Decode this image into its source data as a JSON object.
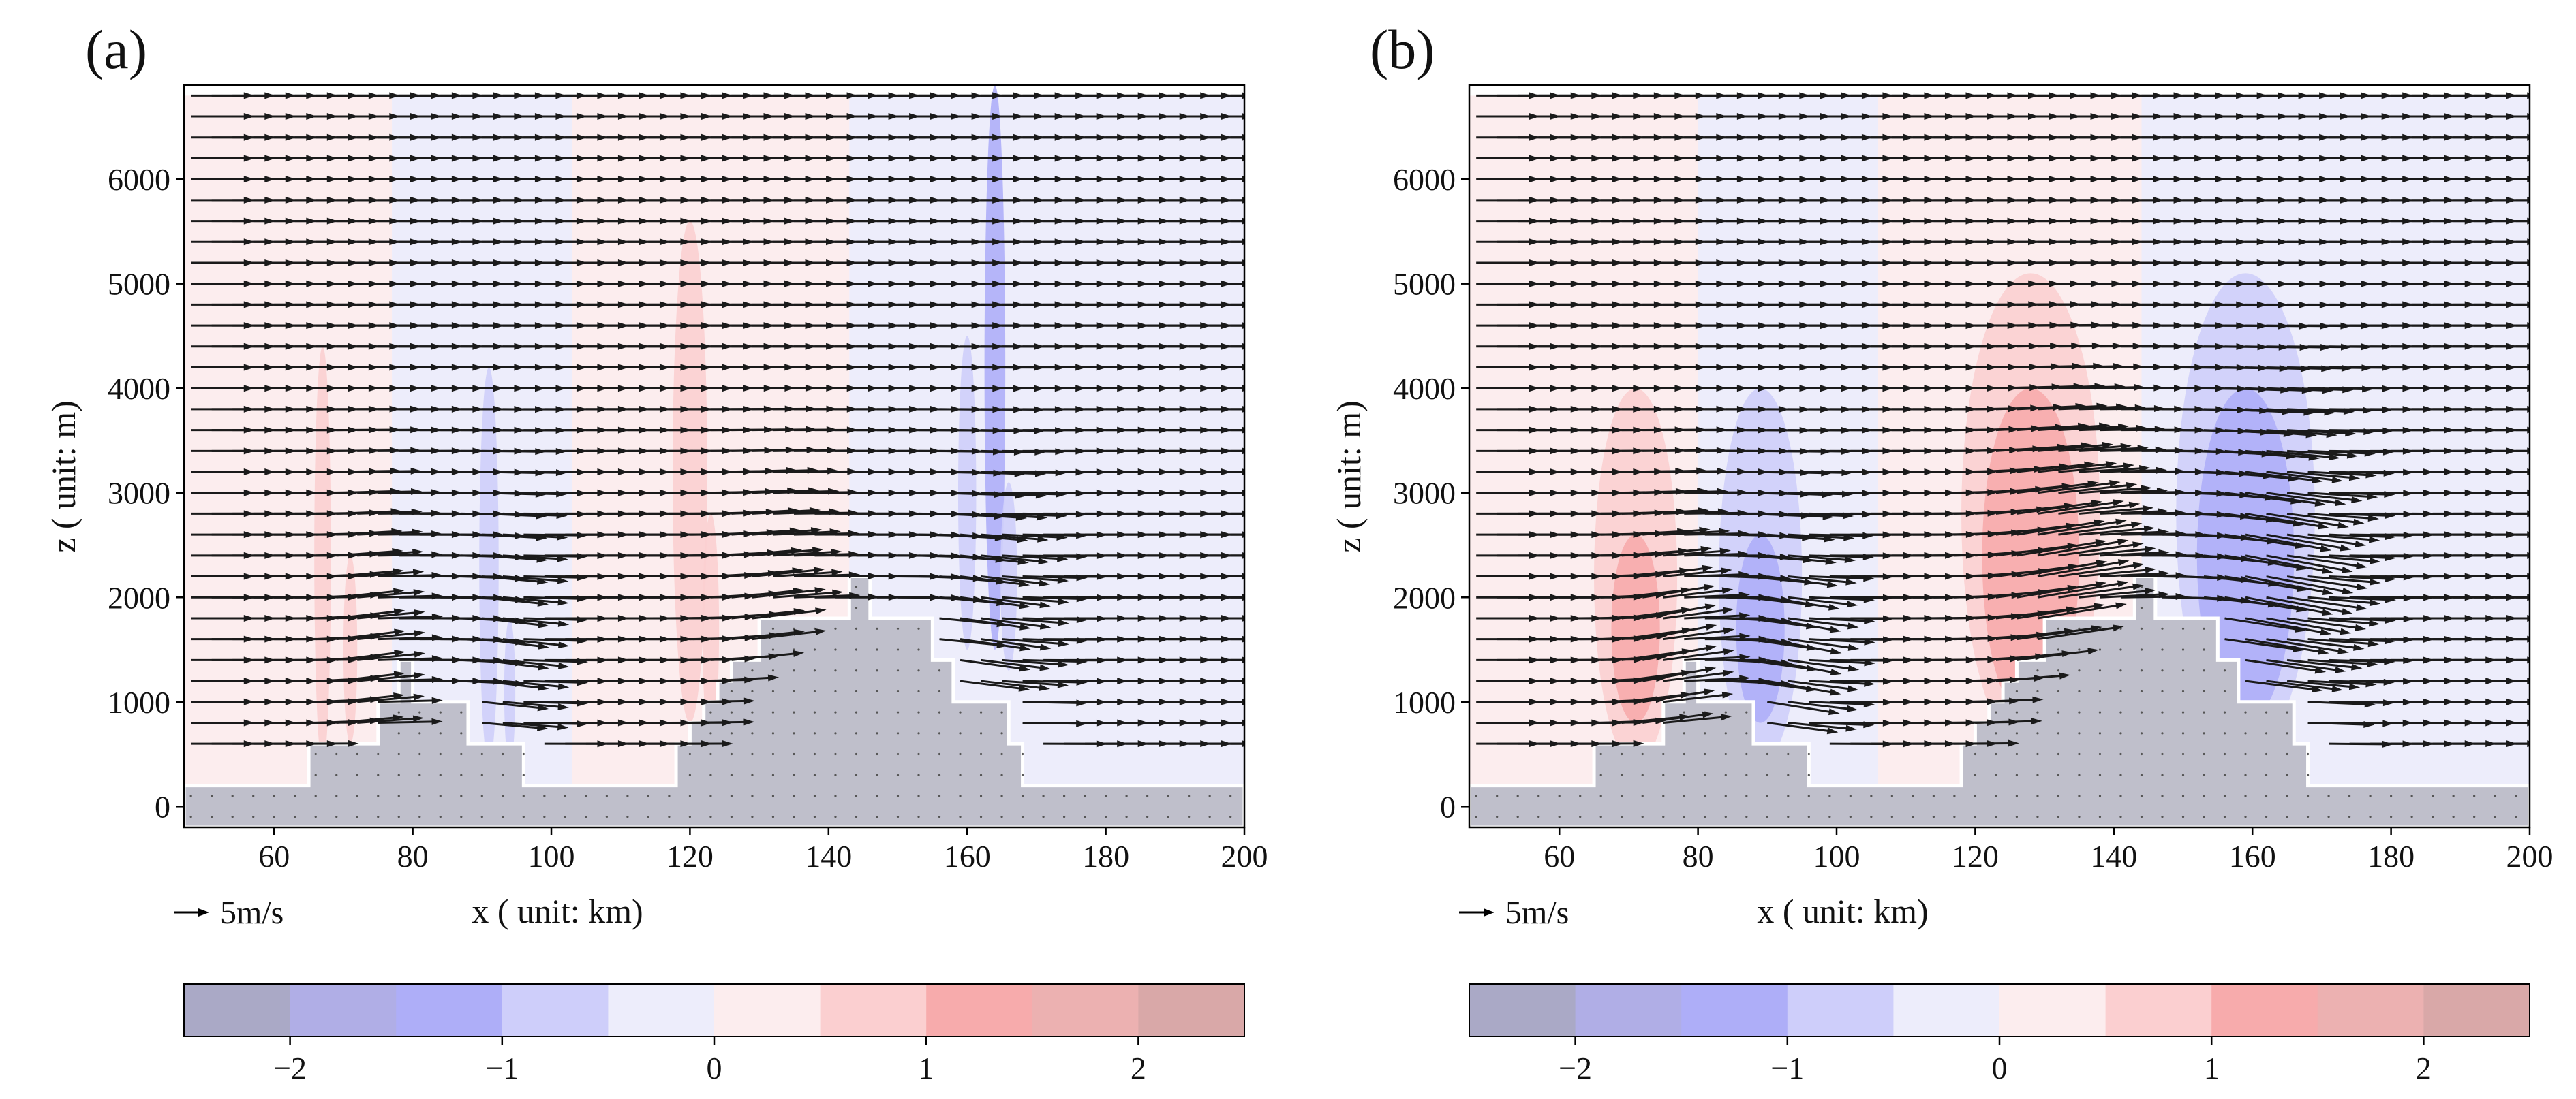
{
  "chart_data": [
    {
      "type": "contour+quiver",
      "panel_label": "(a)",
      "xlabel": "x ( unit: km)",
      "ylabel": "z ( unit: m)",
      "xlim": [
        47,
        200
      ],
      "ylim": [
        -200,
        6900
      ],
      "xticks": [
        60,
        80,
        100,
        120,
        140,
        160,
        180,
        200
      ],
      "yticks": [
        0,
        1000,
        2000,
        3000,
        4000,
        5000,
        6000
      ],
      "quiver_key": "5m/s",
      "terrain_km_m": [
        [
          47,
          200
        ],
        [
          65,
          200
        ],
        [
          65,
          600
        ],
        [
          75,
          600
        ],
        [
          75,
          1000
        ],
        [
          78,
          1000
        ],
        [
          78,
          1400
        ],
        [
          80,
          1400
        ],
        [
          80,
          1000
        ],
        [
          88,
          1000
        ],
        [
          88,
          600
        ],
        [
          96,
          600
        ],
        [
          96,
          200
        ],
        [
          118,
          200
        ],
        [
          118,
          600
        ],
        [
          120,
          600
        ],
        [
          120,
          800
        ],
        [
          122,
          800
        ],
        [
          122,
          1000
        ],
        [
          124,
          1000
        ],
        [
          124,
          1200
        ],
        [
          126,
          1200
        ],
        [
          126,
          1400
        ],
        [
          130,
          1400
        ],
        [
          130,
          1800
        ],
        [
          143,
          1800
        ],
        [
          143,
          2200
        ],
        [
          146,
          2200
        ],
        [
          146,
          1800
        ],
        [
          155,
          1800
        ],
        [
          155,
          1400
        ],
        [
          158,
          1400
        ],
        [
          158,
          1000
        ],
        [
          166,
          1000
        ],
        [
          166,
          600
        ],
        [
          168,
          600
        ],
        [
          168,
          200
        ],
        [
          200,
          200
        ]
      ],
      "contours": {
        "colorbar_ticks": [
          -2,
          -1,
          0,
          1,
          2
        ],
        "colorbar_levels": [
          -2.5,
          -2,
          -1.5,
          -1,
          -0.5,
          0,
          0.5,
          1,
          1.5,
          2,
          2.5
        ],
        "background_bands": [
          {
            "x0": 47,
            "x1": 77,
            "value": 0.25
          },
          {
            "x0": 77,
            "x1": 103,
            "value": -0.25
          },
          {
            "x0": 103,
            "x1": 143,
            "value": 0.25
          },
          {
            "x0": 143,
            "x1": 200,
            "value": -0.25
          }
        ],
        "blobs": [
          {
            "cx": 67,
            "cz": 2400,
            "rx": 1.2,
            "rz": 2000,
            "value": 0.8
          },
          {
            "cx": 71,
            "cz": 1500,
            "rx": 1.0,
            "rz": 900,
            "value": 0.8
          },
          {
            "cx": 91,
            "cz": 2300,
            "rx": 1.4,
            "rz": 1900,
            "value": -0.8
          },
          {
            "cx": 94,
            "cz": 1100,
            "rx": 0.8,
            "rz": 700,
            "value": -0.8
          },
          {
            "cx": 120,
            "cz": 3200,
            "rx": 2.5,
            "rz": 2400,
            "value": 0.8
          },
          {
            "cx": 123,
            "cz": 1700,
            "rx": 1.2,
            "rz": 1100,
            "value": 0.8
          },
          {
            "cx": 164,
            "cz": 4200,
            "rx": 1.5,
            "rz": 2700,
            "value": -1.2
          },
          {
            "cx": 160,
            "cz": 3000,
            "rx": 1.3,
            "rz": 1500,
            "value": -0.8
          },
          {
            "cx": 166,
            "cz": 2200,
            "rx": 1.2,
            "rz": 900,
            "value": -0.8
          }
        ]
      },
      "wind_field": {
        "x_step_km": 3,
        "z_levels_m": [
          600,
          800,
          1000,
          1200,
          1400,
          1600,
          1800,
          2000,
          2200,
          2400,
          2600,
          2800,
          3000,
          3200,
          3400,
          3600,
          3800,
          4000,
          4200,
          4400,
          4600,
          4800,
          5000,
          5200,
          5400,
          5600,
          5800,
          6000,
          6200,
          6400,
          6600,
          6800
        ],
        "u_background_ms": 3.6,
        "perturbations": [
          {
            "cx": 70,
            "cz": 1500,
            "rx": 4,
            "rz": 1200,
            "du": 0.3,
            "dw": 0.5
          },
          {
            "cx": 91,
            "cz": 1500,
            "rx": 4,
            "rz": 1200,
            "du": 0.2,
            "dw": -0.5
          },
          {
            "cx": 128,
            "cz": 1700,
            "rx": 6,
            "rz": 1200,
            "du": 0.6,
            "dw": 0.5
          },
          {
            "cx": 160,
            "cz": 1700,
            "rx": 6,
            "rz": 1200,
            "du": 0.4,
            "dw": -0.6
          }
        ]
      }
    },
    {
      "type": "contour+quiver",
      "panel_label": "(b)",
      "xlabel": "x ( unit: km)",
      "ylabel": "z ( unit: m)",
      "xlim": [
        47,
        200
      ],
      "ylim": [
        -200,
        6900
      ],
      "xticks": [
        60,
        80,
        100,
        120,
        140,
        160,
        180,
        200
      ],
      "yticks": [
        0,
        1000,
        2000,
        3000,
        4000,
        5000,
        6000
      ],
      "quiver_key": "5m/s",
      "terrain_km_m": [
        [
          47,
          200
        ],
        [
          65,
          200
        ],
        [
          65,
          600
        ],
        [
          75,
          600
        ],
        [
          75,
          1000
        ],
        [
          78,
          1000
        ],
        [
          78,
          1400
        ],
        [
          80,
          1400
        ],
        [
          80,
          1000
        ],
        [
          88,
          1000
        ],
        [
          88,
          600
        ],
        [
          96,
          600
        ],
        [
          96,
          200
        ],
        [
          118,
          200
        ],
        [
          118,
          600
        ],
        [
          120,
          600
        ],
        [
          120,
          800
        ],
        [
          122,
          800
        ],
        [
          122,
          1000
        ],
        [
          124,
          1000
        ],
        [
          124,
          1200
        ],
        [
          126,
          1200
        ],
        [
          126,
          1400
        ],
        [
          130,
          1400
        ],
        [
          130,
          1800
        ],
        [
          143,
          1800
        ],
        [
          143,
          2200
        ],
        [
          146,
          2200
        ],
        [
          146,
          1800
        ],
        [
          155,
          1800
        ],
        [
          155,
          1400
        ],
        [
          158,
          1400
        ],
        [
          158,
          1000
        ],
        [
          166,
          1000
        ],
        [
          166,
          600
        ],
        [
          168,
          600
        ],
        [
          168,
          200
        ],
        [
          200,
          200
        ]
      ],
      "contours": {
        "colorbar_ticks": [
          -2,
          -1,
          0,
          1,
          2
        ],
        "colorbar_levels": [
          -2.5,
          -2,
          -1.5,
          -1,
          -0.5,
          0,
          0.5,
          1,
          1.5,
          2,
          2.5
        ],
        "background_bands": [
          {
            "x0": 47,
            "x1": 80,
            "value": 0.25
          },
          {
            "x0": 80,
            "x1": 106,
            "value": -0.25
          },
          {
            "x0": 106,
            "x1": 144,
            "value": 0.25
          },
          {
            "x0": 144,
            "x1": 200,
            "value": -0.25
          }
        ],
        "blobs": [
          {
            "cx": 71,
            "cz": 2200,
            "rx": 6,
            "rz": 1800,
            "value": 0.75
          },
          {
            "cx": 71,
            "cz": 1700,
            "rx": 3.5,
            "rz": 900,
            "value": 1.25
          },
          {
            "cx": 89,
            "cz": 2200,
            "rx": 6,
            "rz": 1800,
            "value": -0.75
          },
          {
            "cx": 89,
            "cz": 1700,
            "rx": 3.5,
            "rz": 900,
            "value": -1.25
          },
          {
            "cx": 128,
            "cz": 2800,
            "rx": 10,
            "rz": 2300,
            "value": 0.75
          },
          {
            "cx": 128,
            "cz": 2400,
            "rx": 7,
            "rz": 1600,
            "value": 1.25
          },
          {
            "cx": 159,
            "cz": 2800,
            "rx": 10,
            "rz": 2300,
            "value": -0.75
          },
          {
            "cx": 159,
            "cz": 2400,
            "rx": 7,
            "rz": 1600,
            "value": -1.25
          }
        ]
      },
      "wind_field": {
        "x_step_km": 3,
        "z_levels_m": [
          600,
          800,
          1000,
          1200,
          1400,
          1600,
          1800,
          2000,
          2200,
          2400,
          2600,
          2800,
          3000,
          3200,
          3400,
          3600,
          3800,
          4000,
          4200,
          4400,
          4600,
          4800,
          5000,
          5200,
          5400,
          5600,
          5800,
          6000,
          6200,
          6400,
          6600,
          6800
        ],
        "u_background_ms": 3.6,
        "perturbations": [
          {
            "cx": 72,
            "cz": 1500,
            "rx": 5,
            "rz": 1100,
            "du": 0.6,
            "dw": 0.8
          },
          {
            "cx": 90,
            "cz": 1500,
            "rx": 5,
            "rz": 1100,
            "du": 0.6,
            "dw": -0.8
          },
          {
            "cx": 128,
            "cz": 2200,
            "rx": 8,
            "rz": 1300,
            "du": 1.6,
            "dw": 0.9
          },
          {
            "cx": 160,
            "cz": 2200,
            "rx": 8,
            "rz": 1300,
            "du": 1.4,
            "dw": -1.0
          }
        ]
      }
    }
  ],
  "colors": {
    "colorbar": [
      "#aaa9c6",
      "#b0aee6",
      "#aeaef8",
      "#cecefa",
      "#ededfb",
      "#fcedee",
      "#fbcfd0",
      "#f7abac",
      "#ecb1b1",
      "#d9a8a8"
    ],
    "terrain": "#bfbfcb",
    "arrow": "#1a1a1a"
  }
}
